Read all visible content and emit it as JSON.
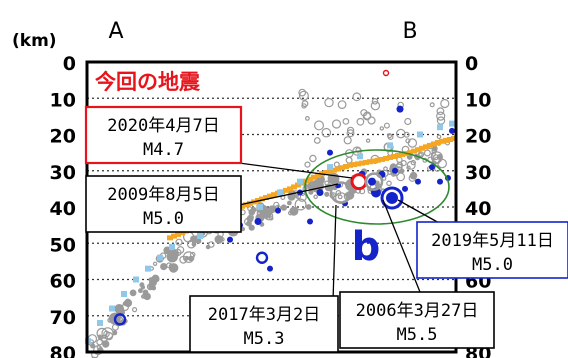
{
  "chart_data": {
    "type": "scatter",
    "unit_label": "(km)",
    "profile_start": "A",
    "profile_end": "B",
    "y_ticks": [
      0,
      10,
      20,
      30,
      40,
      50,
      60,
      70,
      80
    ],
    "ylim": [
      0,
      80
    ],
    "y_reversed": true,
    "grid": "horizontal dotted",
    "headline": "今回の地震",
    "cluster_label": "b",
    "colors": {
      "current": "#e8141c",
      "notable": "#1424c8",
      "background": "#9a9a9a",
      "plate_a": "#f5a623",
      "plate_b": "#8fc8e8",
      "ellipse": "#2d8a2d"
    },
    "annotations": [
      {
        "date": "2020年4月7日",
        "mag": "M4.7",
        "depth": 33,
        "style": "current"
      },
      {
        "date": "2009年8月5日",
        "mag": "M5.0",
        "depth": 34,
        "style": "past"
      },
      {
        "date": "2017年3月2日",
        "mag": "M5.3",
        "depth": 36,
        "style": "past"
      },
      {
        "date": "2006年3月27日",
        "mag": "M5.5",
        "depth": 33,
        "style": "past"
      },
      {
        "date": "2019年5月11日",
        "mag": "M5.0",
        "depth": 34,
        "style": "blue"
      }
    ]
  }
}
